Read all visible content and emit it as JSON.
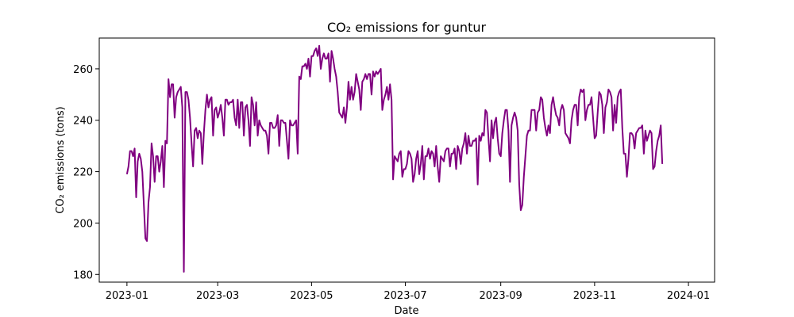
{
  "chart_data": {
    "type": "line",
    "title": "CO₂ emissions for guntur",
    "xlabel": "Date",
    "ylabel": "CO₂ emissions (tons)",
    "xlim": [
      "2022-12-14",
      "2024-01-18"
    ],
    "ylim": [
      177,
      272
    ],
    "grid": false,
    "x_ticks": [
      "2023-01",
      "2023-03",
      "2023-05",
      "2023-07",
      "2023-09",
      "2023-11",
      "2024-01"
    ],
    "y_ticks": [
      180,
      200,
      220,
      240,
      260
    ],
    "series": [
      {
        "color": "#800080",
        "start_date": "2023-01-01",
        "values": [
          219,
          222,
          228,
          228,
          226,
          229,
          210,
          224,
          227,
          225,
          220,
          207,
          194,
          193,
          208,
          214,
          231,
          226,
          216,
          226,
          226,
          220,
          224,
          230,
          214,
          232,
          231,
          256,
          249,
          254,
          254,
          241,
          249,
          251,
          252,
          253,
          245,
          181,
          251,
          251,
          248,
          241,
          231,
          222,
          236,
          237,
          233,
          236,
          235,
          223,
          235,
          244,
          250,
          245,
          248,
          249,
          234,
          244,
          245,
          241,
          243,
          246,
          241,
          234,
          248,
          248,
          246,
          247,
          247,
          248,
          241,
          238,
          248,
          237,
          247,
          247,
          234,
          245,
          246,
          240,
          230,
          249,
          246,
          238,
          247,
          234,
          240,
          238,
          237,
          236,
          236,
          234,
          227,
          239,
          239,
          237,
          237,
          238,
          242,
          230,
          240,
          240,
          239,
          239,
          232,
          225,
          240,
          238,
          238,
          239,
          240,
          227,
          257,
          256,
          261,
          261,
          262,
          260,
          264,
          257,
          265,
          265,
          267,
          268,
          265,
          269,
          260,
          264,
          266,
          264,
          264,
          266,
          255,
          267,
          264,
          260,
          257,
          251,
          243,
          242,
          241,
          245,
          239,
          245,
          255,
          248,
          253,
          248,
          251,
          258,
          255,
          252,
          244,
          255,
          256,
          258,
          256,
          258,
          258,
          250,
          259,
          257,
          259,
          258,
          259,
          260,
          244,
          248,
          250,
          253,
          248,
          254,
          248,
          217,
          226,
          225,
          224,
          227,
          228,
          218,
          221,
          221,
          223,
          228,
          227,
          225,
          216,
          219,
          225,
          228,
          219,
          223,
          230,
          217,
          226,
          226,
          229,
          225,
          228,
          227,
          222,
          230,
          222,
          216,
          226,
          225,
          224,
          228,
          229,
          229,
          222,
          227,
          227,
          229,
          221,
          230,
          228,
          223,
          229,
          231,
          235,
          227,
          234,
          230,
          230,
          232,
          232,
          233,
          215,
          234,
          232,
          235,
          234,
          244,
          243,
          233,
          224,
          240,
          233,
          239,
          241,
          233,
          227,
          226,
          235,
          240,
          244,
          244,
          236,
          216,
          238,
          241,
          243,
          241,
          236,
          215,
          205,
          207,
          218,
          226,
          234,
          236,
          236,
          244,
          244,
          244,
          236,
          243,
          244,
          249,
          248,
          241,
          237,
          234,
          238,
          235,
          246,
          249,
          245,
          242,
          241,
          238,
          244,
          246,
          244,
          235,
          234,
          233,
          231,
          240,
          244,
          246,
          246,
          238,
          249,
          252,
          251,
          252,
          240,
          244,
          246,
          246,
          249,
          241,
          233,
          234,
          243,
          251,
          250,
          246,
          235,
          245,
          247,
          252,
          251,
          249,
          236,
          246,
          239,
          249,
          251,
          252,
          237,
          227,
          227,
          218,
          225,
          235,
          235,
          234,
          229,
          235,
          236,
          237,
          237,
          238,
          227,
          236,
          232,
          234,
          236,
          235,
          221,
          222,
          228,
          232,
          234,
          238,
          223
        ]
      }
    ]
  }
}
